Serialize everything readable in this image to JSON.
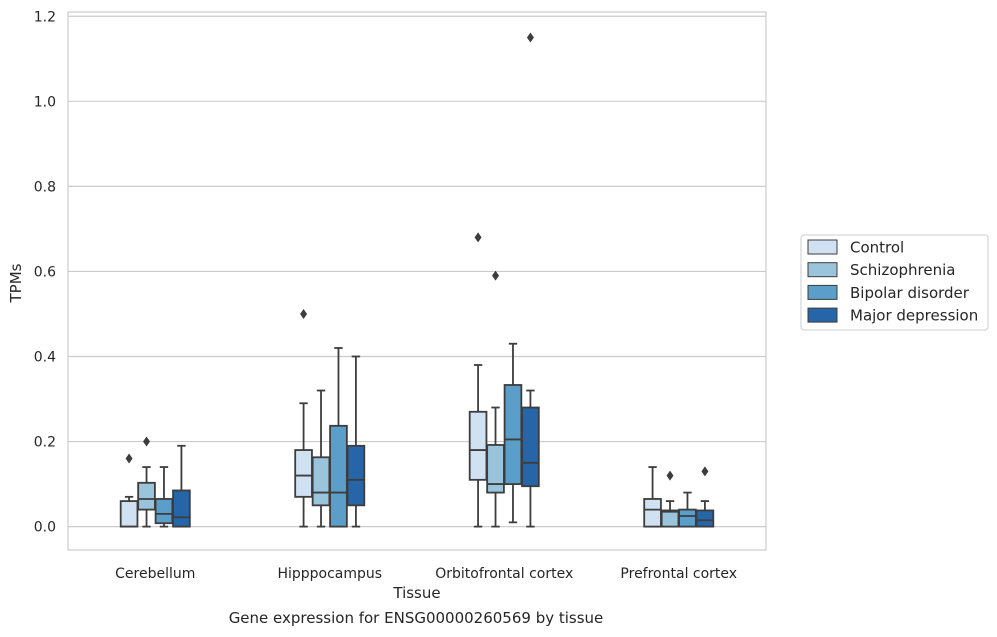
{
  "chart_data": {
    "type": "box",
    "title": "",
    "xlabel": "Tissue",
    "ylabel": "TPMs",
    "caption": "Gene expression for ENSG00000260569 by tissue",
    "ylim": [
      -0.055,
      1.21
    ],
    "yticks": [
      0.0,
      0.2,
      0.4,
      0.6,
      0.8,
      1.0,
      1.2
    ],
    "ytick_labels": [
      "0.0",
      "0.2",
      "0.4",
      "0.6",
      "0.8",
      "1.0",
      "1.2"
    ],
    "grid": "horizontal",
    "legend_position": "right",
    "categories": [
      "Cerebellum",
      "Hipppocampus",
      "Orbitofrontal cortex",
      "Prefrontal cortex"
    ],
    "series": [
      {
        "name": "Control",
        "color": "#d0e1f2",
        "boxes": [
          {
            "whislo": 0.0,
            "q1": 0.0,
            "med": 0.0,
            "q3": 0.06,
            "whishi": 0.07,
            "fliers": [
              0.16
            ]
          },
          {
            "whislo": 0.0,
            "q1": 0.07,
            "med": 0.12,
            "q3": 0.18,
            "whishi": 0.29,
            "fliers": [
              0.5
            ]
          },
          {
            "whislo": 0.0,
            "q1": 0.11,
            "med": 0.18,
            "q3": 0.27,
            "whishi": 0.38,
            "fliers": [
              0.68
            ]
          },
          {
            "whislo": 0.0,
            "q1": 0.0,
            "med": 0.04,
            "q3": 0.065,
            "whishi": 0.14,
            "fliers": []
          }
        ]
      },
      {
        "name": "Schizophrenia",
        "color": "#9ac3dc",
        "boxes": [
          {
            "whislo": 0.0,
            "q1": 0.04,
            "med": 0.065,
            "q3": 0.103,
            "whishi": 0.14,
            "fliers": [
              0.2
            ]
          },
          {
            "whislo": 0.0,
            "q1": 0.05,
            "med": 0.08,
            "q3": 0.163,
            "whishi": 0.32,
            "fliers": []
          },
          {
            "whislo": 0.0,
            "q1": 0.08,
            "med": 0.1,
            "q3": 0.192,
            "whishi": 0.28,
            "fliers": [
              0.59
            ]
          },
          {
            "whislo": 0.0,
            "q1": 0.0,
            "med": 0.035,
            "q3": 0.038,
            "whishi": 0.06,
            "fliers": [
              0.12
            ]
          }
        ]
      },
      {
        "name": "Bipolar disorder",
        "color": "#5a9ec9",
        "boxes": [
          {
            "whislo": 0.0,
            "q1": 0.008,
            "med": 0.03,
            "q3": 0.065,
            "whishi": 0.14,
            "fliers": []
          },
          {
            "whislo": 0.0,
            "q1": 0.0,
            "med": 0.08,
            "q3": 0.237,
            "whishi": 0.42,
            "fliers": []
          },
          {
            "whislo": 0.01,
            "q1": 0.1,
            "med": 0.205,
            "q3": 0.333,
            "whishi": 0.43,
            "fliers": []
          },
          {
            "whislo": 0.0,
            "q1": 0.0,
            "med": 0.025,
            "q3": 0.04,
            "whishi": 0.08,
            "fliers": []
          }
        ]
      },
      {
        "name": "Major depression",
        "color": "#2565a8",
        "boxes": [
          {
            "whislo": 0.0,
            "q1": 0.0,
            "med": 0.022,
            "q3": 0.085,
            "whishi": 0.19,
            "fliers": []
          },
          {
            "whislo": 0.0,
            "q1": 0.05,
            "med": 0.11,
            "q3": 0.19,
            "whishi": 0.4,
            "fliers": []
          },
          {
            "whislo": 0.0,
            "q1": 0.095,
            "med": 0.15,
            "q3": 0.28,
            "whishi": 0.32,
            "fliers": [
              1.15
            ]
          },
          {
            "whislo": 0.0,
            "q1": 0.0,
            "med": 0.015,
            "q3": 0.038,
            "whishi": 0.06,
            "fliers": [
              0.13
            ]
          }
        ]
      }
    ]
  }
}
